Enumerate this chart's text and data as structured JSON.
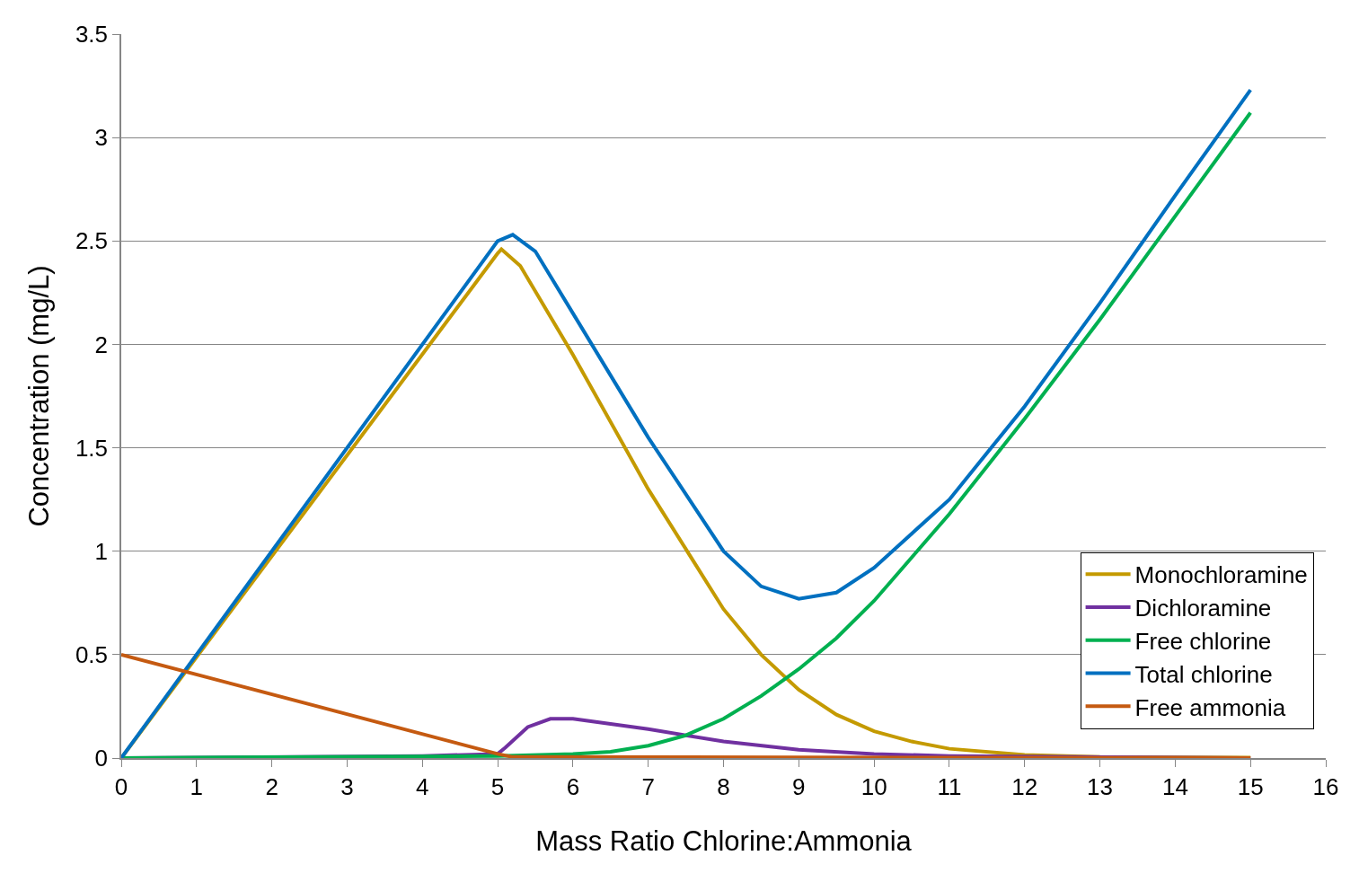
{
  "chart_data": {
    "type": "line",
    "xlabel": "Mass Ratio Chlorine:Ammonia",
    "ylabel": "Concentration (mg/L)",
    "xlim": [
      0,
      16
    ],
    "xticks": [
      0,
      1,
      2,
      3,
      4,
      5,
      6,
      7,
      8,
      9,
      10,
      11,
      12,
      13,
      14,
      15,
      16
    ],
    "ylim": [
      0,
      3.5
    ],
    "yticks": [
      0,
      0.5,
      1,
      1.5,
      2,
      2.5,
      3,
      3.5
    ],
    "grid": "y",
    "legend": "bottom right",
    "marker": "none",
    "line_style": "solid",
    "series": [
      {
        "name": "Monochloramine",
        "color": "#c49a00",
        "x": [
          0,
          5,
          5.05,
          5.3,
          6,
          7,
          8,
          8.5,
          9,
          9.5,
          10,
          10.5,
          11,
          12,
          13,
          15
        ],
        "values": [
          0,
          2.44,
          2.46,
          2.38,
          1.95,
          1.3,
          0.72,
          0.5,
          0.33,
          0.21,
          0.13,
          0.08,
          0.045,
          0.015,
          0.005,
          0.002
        ]
      },
      {
        "name": "Dichloramine",
        "color": "#7030a0",
        "x": [
          0,
          4,
          5,
          5.1,
          5.4,
          5.7,
          6,
          7,
          8,
          9,
          10,
          11,
          15
        ],
        "values": [
          0,
          0.01,
          0.02,
          0.05,
          0.15,
          0.19,
          0.19,
          0.14,
          0.08,
          0.04,
          0.02,
          0.01,
          0
        ]
      },
      {
        "name": "Free chlorine",
        "color": "#00b050",
        "x": [
          0,
          5,
          6,
          6.5,
          7,
          7.5,
          8,
          8.5,
          9,
          9.5,
          10,
          11,
          12,
          13,
          14,
          15
        ],
        "values": [
          0,
          0.01,
          0.02,
          0.03,
          0.06,
          0.11,
          0.19,
          0.3,
          0.43,
          0.58,
          0.76,
          1.18,
          1.64,
          2.12,
          2.62,
          3.12
        ]
      },
      {
        "name": "Total chlorine",
        "color": "#0070c0",
        "x": [
          0,
          5,
          5.2,
          5.5,
          6,
          7,
          8,
          8.5,
          9,
          9.5,
          10,
          11,
          12,
          13,
          14,
          15
        ],
        "values": [
          0,
          2.5,
          2.53,
          2.45,
          2.15,
          1.55,
          1.0,
          0.83,
          0.77,
          0.8,
          0.92,
          1.25,
          1.7,
          2.2,
          2.72,
          3.23
        ]
      },
      {
        "name": "Free ammonia",
        "color": "#c55a11",
        "x": [
          0,
          5,
          5.2,
          15
        ],
        "values": [
          0.5,
          0.02,
          0.005,
          0
        ]
      }
    ]
  }
}
